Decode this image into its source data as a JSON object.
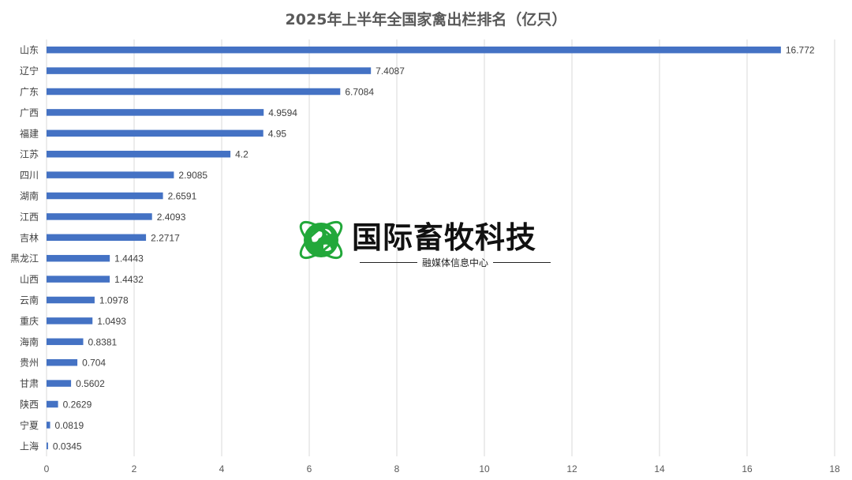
{
  "chart_data": {
    "type": "bar",
    "orientation": "horizontal",
    "title": "2025年上半年全国家禽出栏排名（亿只）",
    "categories": [
      "山东",
      "辽宁",
      "广东",
      "广西",
      "福建",
      "江苏",
      "四川",
      "湖南",
      "江西",
      "吉林",
      "黑龙江",
      "山西",
      "云南",
      "重庆",
      "海南",
      "贵州",
      "甘肃",
      "陕西",
      "宁夏",
      "上海"
    ],
    "values": [
      16.772,
      7.4087,
      6.7084,
      4.9594,
      4.95,
      4.2,
      2.9085,
      2.6591,
      2.4093,
      2.2717,
      1.4443,
      1.4432,
      1.0978,
      1.0493,
      0.8381,
      0.704,
      0.5602,
      0.2629,
      0.0819,
      0.0345
    ],
    "value_labels": [
      "16.772",
      "7.4087",
      "6.7084",
      "4.9594",
      "4.95",
      "4.2",
      "2.9085",
      "2.6591",
      "2.4093",
      "2.2717",
      "1.4443",
      "1.4432",
      "1.0978",
      "1.0493",
      "0.8381",
      "0.704",
      "0.5602",
      "0.2629",
      "0.0819",
      "0.0345"
    ],
    "xlim": [
      0,
      18
    ],
    "xticks": [
      "0",
      "2",
      "4",
      "6",
      "8",
      "10",
      "12",
      "14",
      "16",
      "18"
    ],
    "grid": true,
    "bar_color": "#4472c4"
  },
  "watermark": {
    "brand": "国际畜牧科技",
    "subtitle": "融媒体信息中心",
    "icon": "globe-leaf-icon",
    "color": "#22a83a"
  }
}
